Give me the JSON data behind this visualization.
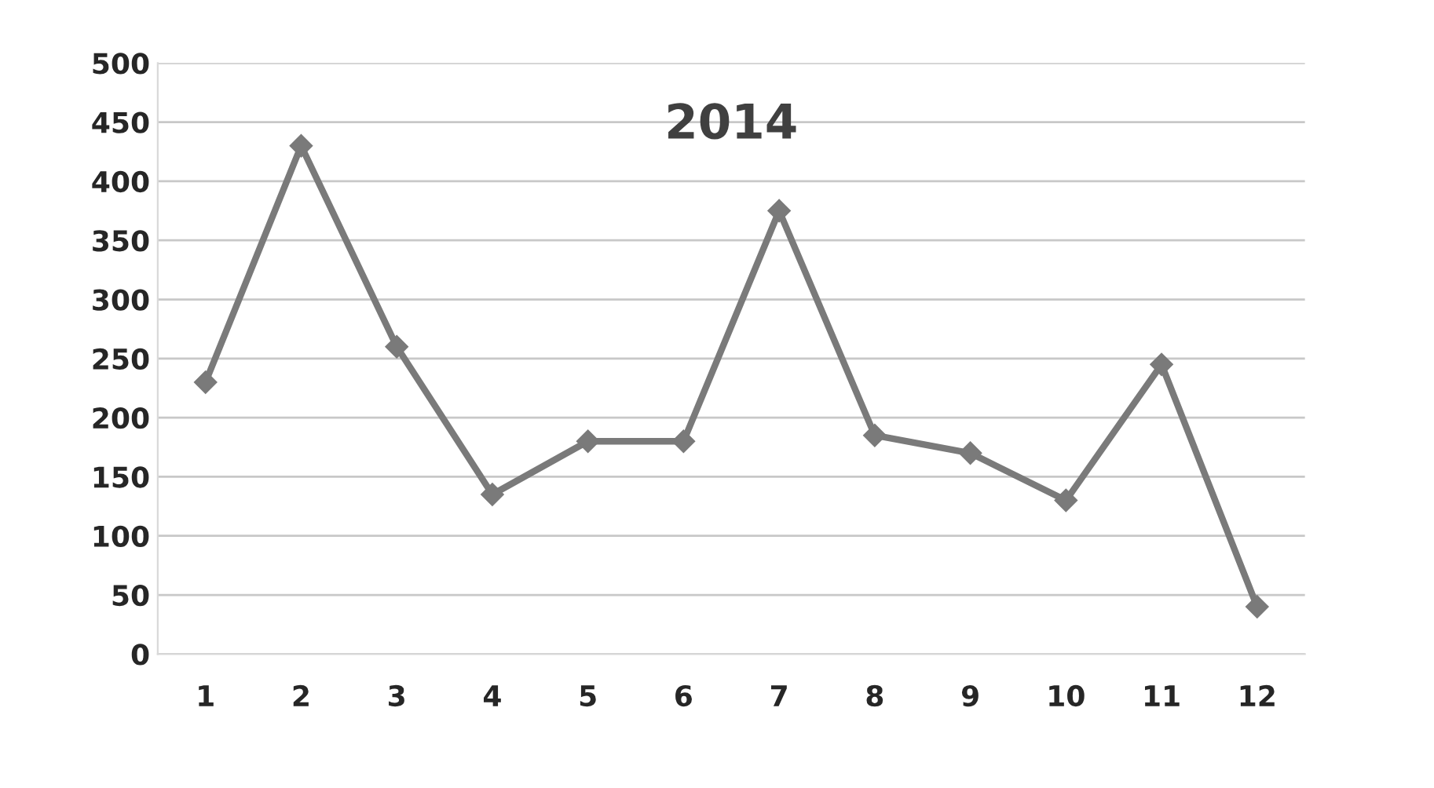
{
  "chart_data": {
    "type": "line",
    "title": "2014",
    "categories": [
      "1",
      "2",
      "3",
      "4",
      "5",
      "6",
      "7",
      "8",
      "9",
      "10",
      "11",
      "12"
    ],
    "series": [
      {
        "color": "#7a7a7a",
        "values": [
          230,
          430,
          260,
          135,
          180,
          180,
          375,
          185,
          170,
          130,
          245,
          40
        ]
      }
    ],
    "ylim": [
      0,
      500
    ],
    "yticks": [
      0,
      50,
      100,
      150,
      200,
      250,
      300,
      350,
      400,
      450,
      500
    ],
    "grid": "y",
    "marker": "diamond",
    "line_style": "solid"
  }
}
